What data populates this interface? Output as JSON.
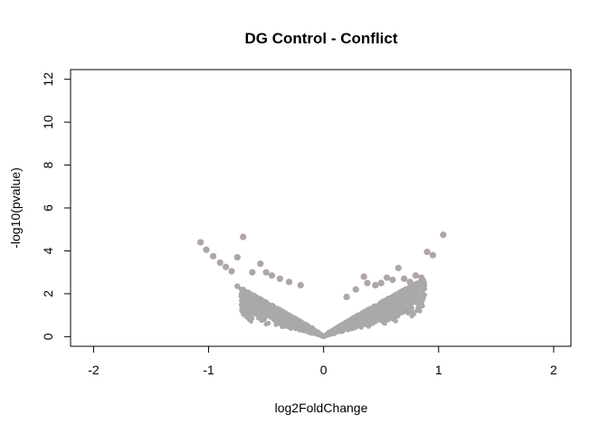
{
  "chart_data": {
    "type": "scatter",
    "title": "DG Control - Conflict",
    "xlabel": "log2FoldChange",
    "ylabel": "-log10(pvalue)",
    "xlim": [
      -2.2,
      2.15
    ],
    "ylim": [
      -0.45,
      12.45
    ],
    "xticks": [
      "-2",
      "-1",
      "0",
      "1",
      "2"
    ],
    "yticks": [
      "0",
      "2",
      "4",
      "6",
      "8",
      "10",
      "12"
    ],
    "grid": false,
    "legend": "none",
    "point_color": "#a9a9a9",
    "highlight_color": "#b89ca0",
    "series": [
      {
        "description_points": "bulk volcano cloud (approx. y = 2.3*|x|^0.85 envelope)",
        "x": [
          -0.05,
          -0.1,
          -0.15,
          -0.2,
          -0.25,
          -0.3,
          -0.35,
          -0.4,
          -0.45,
          -0.5,
          -0.55,
          -0.6,
          -0.65,
          -0.7,
          -0.75,
          0.05,
          0.1,
          0.15,
          0.2,
          0.25,
          0.3,
          0.35,
          0.4,
          0.45,
          0.5,
          0.55,
          0.6,
          0.65,
          0.7,
          0.75,
          0.8,
          0.85
        ],
        "y": [
          0.2,
          0.4,
          0.55,
          0.7,
          0.85,
          1.0,
          1.15,
          1.3,
          1.45,
          1.6,
          1.75,
          1.9,
          2.05,
          2.2,
          2.35,
          0.2,
          0.35,
          0.5,
          0.65,
          0.8,
          0.95,
          1.1,
          1.25,
          1.4,
          1.55,
          1.7,
          1.85,
          2.0,
          2.15,
          2.3,
          2.45,
          2.6
        ]
      },
      {
        "description_points": "outliers",
        "x": [
          -1.07,
          -1.02,
          -0.96,
          -0.9,
          -0.85,
          -0.8,
          -0.7,
          -0.75,
          -0.55,
          -0.5,
          -0.45,
          -0.38,
          -0.3,
          -0.62,
          -0.2,
          0.2,
          0.28,
          0.35,
          0.38,
          0.45,
          0.5,
          0.55,
          0.6,
          0.65,
          0.7,
          0.75,
          0.8,
          0.85,
          0.9,
          0.95,
          1.04
        ],
        "y": [
          4.4,
          4.05,
          3.75,
          3.45,
          3.25,
          3.05,
          4.65,
          3.7,
          3.4,
          3.0,
          2.85,
          2.7,
          2.55,
          3.0,
          2.4,
          1.85,
          2.2,
          2.8,
          2.5,
          2.4,
          2.5,
          2.75,
          2.65,
          3.2,
          2.7,
          2.55,
          2.85,
          2.75,
          3.95,
          3.8,
          4.75
        ]
      }
    ]
  }
}
